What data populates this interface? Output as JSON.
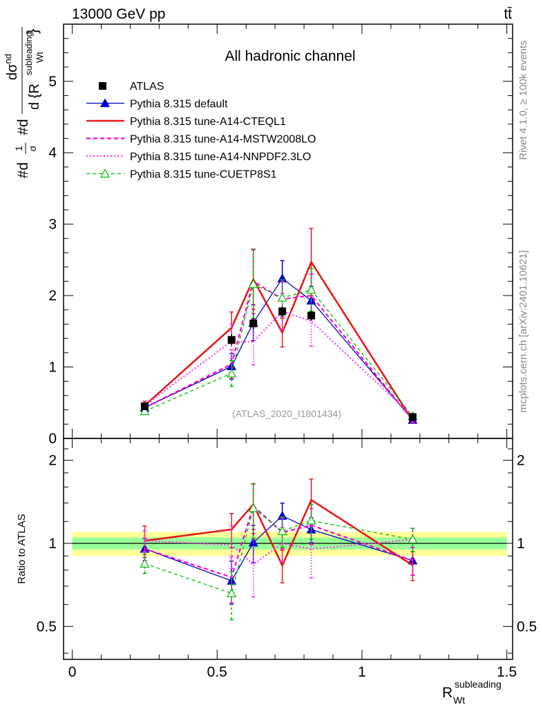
{
  "header": {
    "energy_label": "13000 GeV pp",
    "process_label": "tt̄"
  },
  "side": {
    "rivet_label": "Rivet 4.1.0, ≥ 100k events",
    "mcplots_label": "mcplots.cern.ch [arXiv:2401.10621]"
  },
  "colors": {
    "data": "#000000",
    "default": "#0000cc",
    "cteql1": "#e41a1c",
    "mstw": "#ff00cc",
    "nnpdf": "#ff33ff",
    "cuetp8s1": "#00bb00",
    "band_inner": "#99ff99",
    "band_outer": "#ffff99"
  },
  "chart_data": {
    "type": "line",
    "title": "All hadronic channel",
    "analysis_label": "(ATLAS_2020_I1801434)",
    "ylabel": "#d¹⁄σ#d dσ^nd / d {R_Wt^subleading}",
    "ylabel_parts": {
      "a": "#d",
      "b": "1",
      "c": "σ",
      "d": "#d",
      "num": "dσ",
      "num_sup": "nd",
      "den": "d {R",
      "den_sup": "subleading",
      "den_sub": "Wt",
      "den_close": "}"
    },
    "xlabel": {
      "main": "R",
      "sup": "subleading",
      "sub": "Wt"
    },
    "ratio_ylabel": "Ratio to ATLAS",
    "xlim": [
      -0.03,
      1.52
    ],
    "ylim": [
      0,
      5.8
    ],
    "ratio_ylim": [
      0.38,
      2.4
    ],
    "x_ticks": [
      "0",
      "0.5",
      "1",
      "1.5"
    ],
    "x_tick_values": [
      0,
      0.5,
      1,
      1.5
    ],
    "y_ticks": [
      "0",
      "1",
      "2",
      "3",
      "4",
      "5"
    ],
    "y_tick_values": [
      0,
      1,
      2,
      3,
      4,
      5
    ],
    "ratio_ticks": [
      "0.5",
      "1",
      "2"
    ],
    "ratio_tick_values": [
      0.5,
      1,
      2
    ],
    "ratio_band_inner": [
      0.95,
      1.05
    ],
    "ratio_band_outer": [
      0.9,
      1.1
    ],
    "x": [
      0.25,
      0.55,
      0.625,
      0.725,
      0.825,
      1.175
    ],
    "data": {
      "name": "ATLAS",
      "values": [
        0.45,
        1.38,
        1.61,
        1.78,
        1.72,
        0.3
      ],
      "errors": [
        0.03,
        0.08,
        0.08,
        0.07,
        0.07,
        0.03
      ]
    },
    "series": [
      {
        "key": "default",
        "name": "Pythia 8.315 default",
        "style": "solid-triangle",
        "values": [
          0.43,
          1.01,
          1.62,
          2.24,
          1.93,
          0.26
        ],
        "errors": [
          0.04,
          0.18,
          0.25,
          0.25,
          0.2,
          0.03
        ]
      },
      {
        "key": "cteql1",
        "name": "Pythia 8.315 tune-A14-CTEQL1",
        "style": "solid-thick",
        "values": [
          0.46,
          1.55,
          2.23,
          1.48,
          2.47,
          0.25
        ],
        "errors": [
          0.06,
          0.22,
          0.42,
          0.2,
          0.47,
          0.03
        ]
      },
      {
        "key": "mstw",
        "name": "Pythia 8.315 tune-A14-MSTW2008LO",
        "style": "dashed",
        "values": [
          0.43,
          1.04,
          2.2,
          1.95,
          2.0,
          0.26
        ],
        "errors": [
          0.04,
          0.2,
          0.45,
          0.25,
          0.3,
          0.03
        ]
      },
      {
        "key": "nnpdf",
        "name": "Pythia 8.315 tune-A14-NNPDF2.3LO",
        "style": "dotted",
        "values": [
          0.46,
          1.36,
          1.35,
          1.78,
          1.64,
          0.31
        ],
        "errors": [
          0.04,
          0.24,
          0.32,
          0.25,
          0.35,
          0.03
        ]
      },
      {
        "key": "cuetp8s1",
        "name": "Pythia 8.315 tune-CUETP8S1",
        "style": "dashed-open-triangle",
        "values": [
          0.38,
          0.91,
          2.16,
          1.97,
          2.08,
          0.31
        ],
        "errors": [
          0.03,
          0.18,
          0.48,
          0.25,
          0.3,
          0.03
        ]
      }
    ]
  }
}
